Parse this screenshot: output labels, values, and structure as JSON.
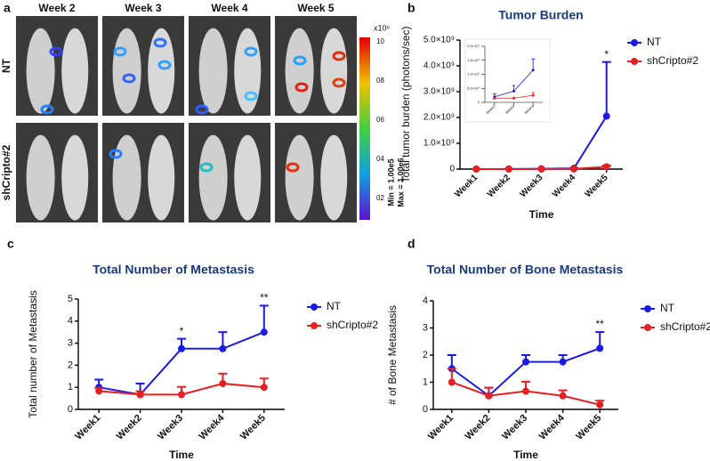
{
  "panel_a": {
    "label": "a",
    "columns": [
      "Week 2",
      "Week 3",
      "Week 4",
      "Week 5"
    ],
    "rows": [
      "NT",
      "shCripto#2"
    ],
    "colorbar": {
      "unit": "x10⁶",
      "ticks": [
        "10",
        "08",
        "06",
        "04",
        "02"
      ],
      "notes": [
        "Min = 1.00e5",
        "Max = 1.00e6"
      ]
    }
  },
  "chart_data": [
    {
      "type": "line",
      "label": "b",
      "title": "Tumor Burden",
      "xlabel": "Time",
      "ylabel": "Total tumor burden (photons/sec)",
      "categories": [
        "Week1",
        "Week2",
        "Week3",
        "Week4",
        "Week5"
      ],
      "series": [
        {
          "name": "NT",
          "color": "#1a1ae6",
          "values": [
            2000000,
            4000000,
            11500000,
            30000000,
            2050000000
          ],
          "errors": [
            1000000,
            2000000,
            4000000,
            10000000,
            2100000000
          ]
        },
        {
          "name": "shCripto#2",
          "color": "#e62020",
          "values": [
            1500000,
            1500000,
            2500000,
            10000000,
            90000000
          ],
          "errors": [
            0,
            0,
            1000000,
            5000000,
            50000000
          ]
        }
      ],
      "ylim": [
        0,
        5000000000
      ],
      "yticks": [
        0,
        {
          "value": 1000000000,
          "label": "1.0×10⁹"
        },
        {
          "value": 2000000000,
          "label": "2.0×10⁹"
        },
        {
          "value": 3000000000,
          "label": "3.0×10⁹"
        },
        {
          "value": 4000000000,
          "label": "4.0×10⁹"
        },
        {
          "value": 5000000000,
          "label": "5.0×10⁹"
        }
      ],
      "legend": "right",
      "annotations": [
        {
          "text": "*",
          "x": "Week5"
        }
      ]
    },
    {
      "type": "line",
      "categories": [
        "Week1",
        "Week2",
        "Week3"
      ],
      "series": [
        {
          "color": "#1a1ae6",
          "values": [
            2000000,
            4000000,
            11500000
          ],
          "errors": [
            1000000,
            2000000,
            4000000
          ]
        },
        {
          "color": "#e62020",
          "values": [
            1500000,
            1500000,
            2500000
          ],
          "errors": [
            0,
            0,
            1000000
          ]
        }
      ],
      "ylim": [
        0,
        20000000
      ],
      "yticks": [
        0,
        {
          "value": 5000000,
          "label": "5.0×10⁶"
        },
        {
          "value": 10000000,
          "label": "1.0×10⁷"
        },
        {
          "value": 15000000,
          "label": "1.5×10⁷"
        },
        {
          "value": 20000000,
          "label": "2.0×10⁷"
        }
      ]
    },
    {
      "type": "line",
      "label": "c",
      "title": "Total Number of Metastasis",
      "xlabel": "Time",
      "ylabel": "Total number of Metastasis",
      "categories": [
        "Week1",
        "Week2",
        "Week3",
        "Week4",
        "Week5"
      ],
      "series": [
        {
          "name": "NT",
          "color": "#1a1ae6",
          "values": [
            1.0,
            0.67,
            2.75,
            2.75,
            3.5
          ],
          "errors": [
            0.35,
            0.5,
            0.45,
            0.75,
            1.2
          ]
        },
        {
          "name": "shCripto#2",
          "color": "#e62020",
          "values": [
            0.83,
            0.67,
            0.67,
            1.17,
            1.0
          ],
          "errors": [
            0.15,
            0.15,
            0.35,
            0.45,
            0.4
          ]
        }
      ],
      "ylim": [
        0,
        5
      ],
      "yticks": [
        0,
        1,
        2,
        3,
        4,
        5
      ],
      "legend": "right",
      "annotations": [
        {
          "text": "*",
          "x": "Week3"
        },
        {
          "text": "**",
          "x": "Week5"
        }
      ]
    },
    {
      "type": "line",
      "label": "d",
      "title": "Total Number of Bone Metastasis",
      "xlabel": "Time",
      "ylabel": "# of Bone Metastasis",
      "categories": [
        "Week1",
        "Week2",
        "Week3",
        "Week4",
        "Week5"
      ],
      "series": [
        {
          "name": "NT",
          "color": "#1a1ae6",
          "values": [
            1.5,
            0.5,
            1.75,
            1.75,
            2.25
          ],
          "errors": [
            0.5,
            0.3,
            0.25,
            0.25,
            0.6
          ]
        },
        {
          "name": "shCripto#2",
          "color": "#e62020",
          "values": [
            1.0,
            0.5,
            0.67,
            0.5,
            0.17
          ],
          "errors": [
            0.5,
            0.3,
            0.35,
            0.2,
            0.15
          ]
        }
      ],
      "ylim": [
        0,
        4
      ],
      "yticks": [
        0,
        1,
        2,
        3,
        4
      ],
      "legend": "right",
      "annotations": [
        {
          "text": "**",
          "x": "Week5"
        }
      ]
    }
  ]
}
